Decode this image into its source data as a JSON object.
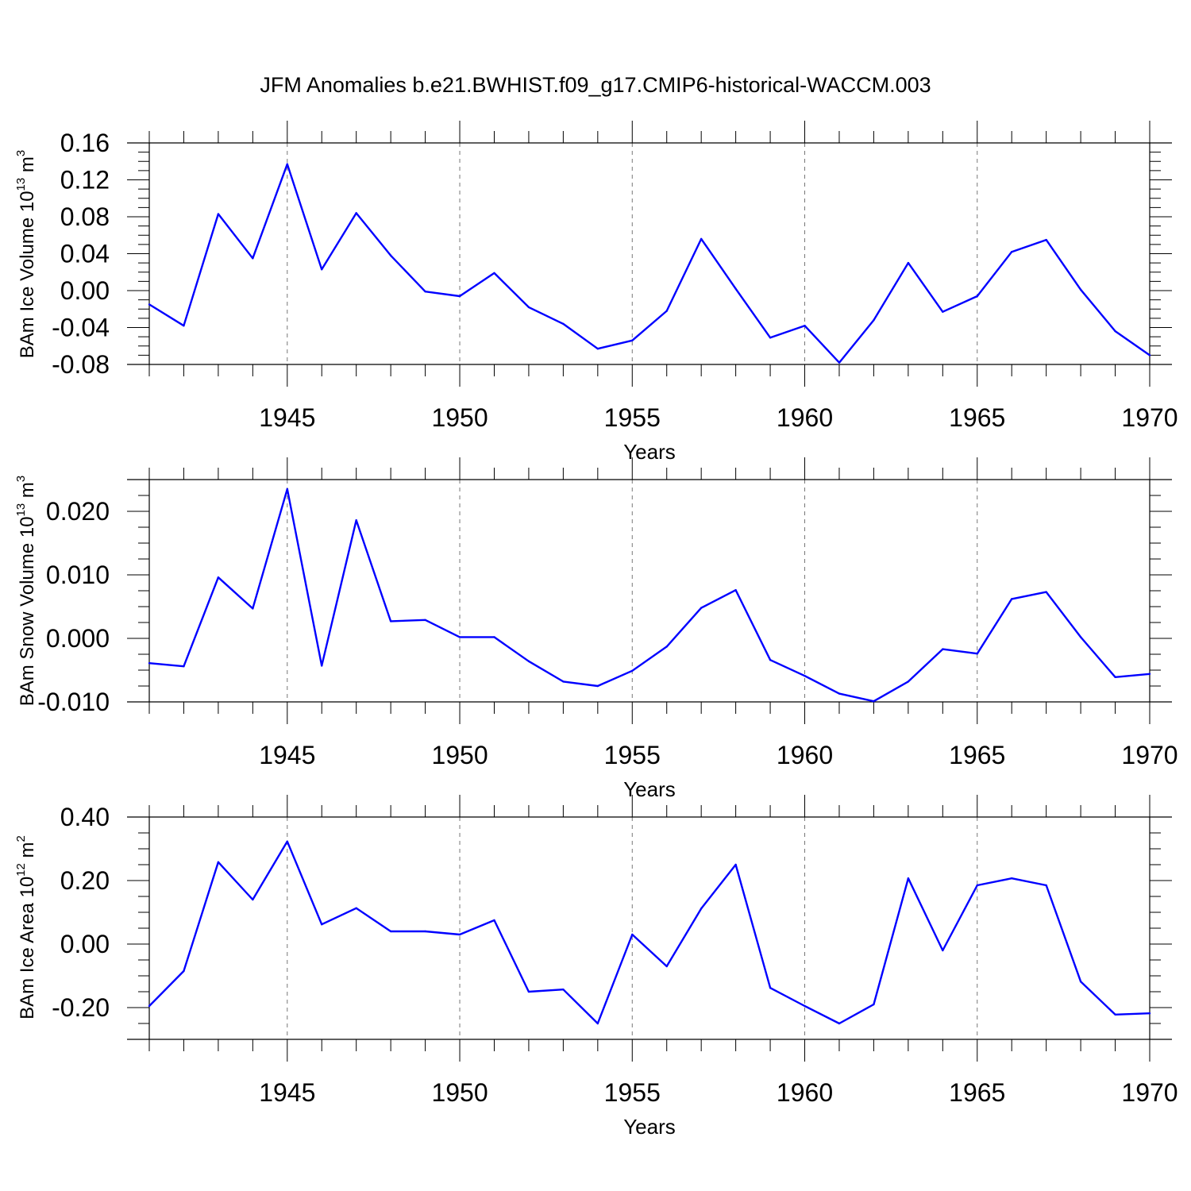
{
  "title": "JFM Anomalies b.e21.BWHIST.f09_g17.CMIP6-historical-WACCM.003",
  "colors": {
    "series": "#0000ff",
    "axis": "#000000",
    "grid": "#777777"
  },
  "chart_data": [
    {
      "type": "line",
      "title": "JFM Anomalies b.e21.BWHIST.f09_g17.CMIP6-historical-WACCM.003",
      "xlabel": "Years",
      "ylabel": {
        "text": "BAm Ice Volume 10",
        "exp": "13",
        "unit": " m",
        "unit_exp": "3"
      },
      "xlim": [
        1941,
        1970
      ],
      "ylim": [
        -0.08,
        0.16
      ],
      "xticks": [
        "1945",
        "1950",
        "1955",
        "1960",
        "1965",
        "1970"
      ],
      "xtick_values": [
        1945,
        1950,
        1955,
        1960,
        1965,
        1970
      ],
      "yticks": [
        "0.16",
        "0.12",
        "0.08",
        "0.04",
        "0.00",
        "-0.04",
        "-0.08"
      ],
      "ytick_values": [
        0.16,
        0.12,
        0.08,
        0.04,
        0.0,
        -0.04,
        -0.08
      ],
      "grid": "vertical dashed at major x ticks",
      "x": [
        1941,
        1942,
        1943,
        1944,
        1945,
        1946,
        1947,
        1948,
        1949,
        1950,
        1951,
        1952,
        1953,
        1954,
        1955,
        1956,
        1957,
        1958,
        1959,
        1960,
        1961,
        1962,
        1963,
        1964,
        1965,
        1966,
        1967,
        1968,
        1969,
        1970
      ],
      "values": [
        -0.015,
        -0.038,
        0.083,
        0.035,
        0.137,
        0.023,
        0.084,
        0.038,
        -0.001,
        -0.006,
        0.019,
        -0.018,
        -0.036,
        -0.063,
        -0.054,
        -0.022,
        0.056,
        0.002,
        -0.051,
        -0.038,
        -0.078,
        -0.032,
        0.03,
        -0.023,
        -0.006,
        0.042,
        0.055,
        0.001,
        -0.044,
        -0.07
      ]
    },
    {
      "type": "line",
      "xlabel": "Years",
      "ylabel": {
        "text": "BAm Snow Volume 10",
        "exp": "13",
        "unit": " m",
        "unit_exp": "3"
      },
      "xlim": [
        1941,
        1970
      ],
      "ylim": [
        -0.01,
        0.025
      ],
      "xticks": [
        "1945",
        "1950",
        "1955",
        "1960",
        "1965",
        "1970"
      ],
      "xtick_values": [
        1945,
        1950,
        1955,
        1960,
        1965,
        1970
      ],
      "yticks": [
        "0.020",
        "0.010",
        "0.000",
        "-0.010"
      ],
      "ytick_values": [
        0.02,
        0.01,
        0.0,
        -0.01
      ],
      "grid": "vertical dashed at major x ticks",
      "x": [
        1941,
        1942,
        1943,
        1944,
        1945,
        1946,
        1947,
        1948,
        1949,
        1950,
        1951,
        1952,
        1953,
        1954,
        1955,
        1956,
        1957,
        1958,
        1959,
        1960,
        1961,
        1962,
        1963,
        1964,
        1965,
        1966,
        1967,
        1968,
        1969,
        1970
      ],
      "values": [
        -0.0039,
        -0.0044,
        0.0096,
        0.0047,
        0.0235,
        -0.0043,
        0.0186,
        0.0027,
        0.0029,
        0.0002,
        0.0002,
        -0.0036,
        -0.0068,
        -0.0075,
        -0.0051,
        -0.0013,
        0.0048,
        0.0076,
        -0.0034,
        -0.0059,
        -0.0087,
        -0.0099,
        -0.0068,
        -0.0017,
        -0.0024,
        0.0062,
        0.0073,
        0.0002,
        -0.0061,
        -0.0056
      ]
    },
    {
      "type": "line",
      "xlabel": "Years",
      "ylabel": {
        "text": "BAm Ice Area 10",
        "exp": "12",
        "unit": " m",
        "unit_exp": "2"
      },
      "xlim": [
        1941,
        1970
      ],
      "ylim": [
        -0.3,
        0.4
      ],
      "xticks": [
        "1945",
        "1950",
        "1955",
        "1960",
        "1965",
        "1970"
      ],
      "xtick_values": [
        1945,
        1950,
        1955,
        1960,
        1965,
        1970
      ],
      "yticks": [
        "0.40",
        "0.20",
        "0.00",
        "-0.20"
      ],
      "ytick_values": [
        0.4,
        0.2,
        0.0,
        -0.2
      ],
      "grid": "vertical dashed at major x ticks",
      "x": [
        1941,
        1942,
        1943,
        1944,
        1945,
        1946,
        1947,
        1948,
        1949,
        1950,
        1951,
        1952,
        1953,
        1954,
        1955,
        1956,
        1957,
        1958,
        1959,
        1960,
        1961,
        1962,
        1963,
        1964,
        1965,
        1966,
        1967,
        1968,
        1969,
        1970
      ],
      "values": [
        -0.195,
        -0.085,
        0.258,
        0.14,
        0.323,
        0.062,
        0.113,
        0.04,
        0.04,
        0.03,
        0.075,
        -0.15,
        -0.143,
        -0.25,
        0.03,
        -0.07,
        0.112,
        0.25,
        -0.138,
        -0.195,
        -0.25,
        -0.19,
        0.207,
        -0.02,
        0.185,
        0.207,
        0.185,
        -0.118,
        -0.222,
        -0.218
      ]
    }
  ]
}
